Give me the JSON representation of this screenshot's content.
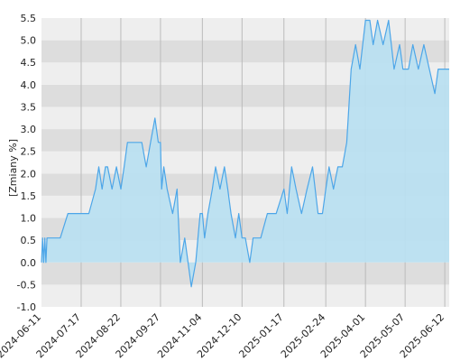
{
  "chart_data": {
    "type": "area",
    "title": "",
    "xlabel": "",
    "ylabel": "[Zmiany %]",
    "ylim": [
      -1.0,
      5.5
    ],
    "y_ticks": [
      "-1.0",
      "-0.5",
      "0.0",
      "0.5",
      "1.0",
      "1.5",
      "2.0",
      "2.5",
      "3.0",
      "3.5",
      "4.0",
      "4.5",
      "5.0",
      "5.5"
    ],
    "x_ticks": [
      "2024-06-11",
      "2024-07-17",
      "2024-08-22",
      "2024-09-27",
      "2024-11-04",
      "2024-12-10",
      "2025-01-17",
      "2025-02-24",
      "2025-04-01",
      "2025-05-07",
      "2025-06-12"
    ],
    "grid": true,
    "series": [
      {
        "color": "#4da6e8",
        "fill": "#b9dff0",
        "x": [
          "2024-06-11",
          "2024-06-12",
          "2024-06-13",
          "2024-06-14",
          "2024-06-15",
          "2024-06-16",
          "2024-06-17",
          "2024-06-21",
          "2024-06-28",
          "2024-07-05",
          "2024-07-10",
          "2024-07-17",
          "2024-07-24",
          "2024-07-30",
          "2024-08-02",
          "2024-08-05",
          "2024-08-08",
          "2024-08-10",
          "2024-08-14",
          "2024-08-18",
          "2024-08-22",
          "2024-08-25",
          "2024-08-28",
          "2024-09-01",
          "2024-09-05",
          "2024-09-10",
          "2024-09-14",
          "2024-09-18",
          "2024-09-22",
          "2024-09-25",
          "2024-09-27",
          "2024-09-28",
          "2024-09-30",
          "2024-10-03",
          "2024-10-08",
          "2024-10-12",
          "2024-10-15",
          "2024-10-19",
          "2024-10-22",
          "2024-10-25",
          "2024-10-29",
          "2024-11-02",
          "2024-11-04",
          "2024-11-06",
          "2024-11-09",
          "2024-11-13",
          "2024-11-16",
          "2024-11-20",
          "2024-11-24",
          "2024-11-27",
          "2024-11-30",
          "2024-12-04",
          "2024-12-07",
          "2024-12-10",
          "2024-12-13",
          "2024-12-17",
          "2024-12-20",
          "2024-12-23",
          "2024-12-27",
          "2025-01-02",
          "2025-01-10",
          "2025-01-17",
          "2025-01-20",
          "2025-01-24",
          "2025-01-28",
          "2025-02-02",
          "2025-02-07",
          "2025-02-12",
          "2025-02-17",
          "2025-02-21",
          "2025-02-24",
          "2025-02-27",
          "2025-03-03",
          "2025-03-07",
          "2025-03-11",
          "2025-03-15",
          "2025-03-19",
          "2025-03-23",
          "2025-03-27",
          "2025-04-01",
          "2025-04-03",
          "2025-04-05",
          "2025-04-08",
          "2025-04-12",
          "2025-04-17",
          "2025-04-22",
          "2025-04-27",
          "2025-05-02",
          "2025-05-05",
          "2025-05-07",
          "2025-05-10",
          "2025-05-14",
          "2025-05-19",
          "2025-05-24",
          "2025-05-29",
          "2025-06-03",
          "2025-06-06",
          "2025-06-09",
          "2025-06-12",
          "2025-06-16"
        ],
        "y": [
          0.0,
          0.55,
          0.0,
          0.55,
          0.0,
          0.55,
          0.55,
          0.55,
          0.55,
          1.1,
          1.1,
          1.1,
          1.1,
          1.65,
          2.15,
          1.65,
          2.15,
          2.15,
          1.65,
          2.15,
          1.65,
          2.15,
          2.7,
          2.7,
          2.7,
          2.7,
          2.15,
          2.7,
          3.25,
          2.7,
          2.7,
          1.65,
          2.15,
          1.65,
          1.1,
          1.65,
          0.0,
          0.55,
          0.0,
          -0.55,
          0.0,
          1.1,
          1.1,
          0.55,
          1.1,
          1.65,
          2.15,
          1.65,
          2.15,
          1.65,
          1.1,
          0.55,
          1.1,
          0.55,
          0.55,
          0.0,
          0.55,
          0.55,
          0.55,
          1.1,
          1.1,
          1.65,
          1.1,
          2.15,
          1.65,
          1.1,
          1.65,
          2.15,
          1.1,
          1.1,
          1.65,
          2.15,
          1.65,
          2.15,
          2.15,
          2.7,
          4.35,
          4.9,
          4.35,
          5.45,
          5.45,
          5.45,
          4.9,
          5.45,
          4.9,
          5.45,
          4.35,
          4.9,
          4.35,
          4.35,
          4.35,
          4.9,
          4.35,
          4.9,
          4.35,
          3.8,
          4.35,
          4.35,
          4.35,
          4.35
        ]
      }
    ]
  }
}
